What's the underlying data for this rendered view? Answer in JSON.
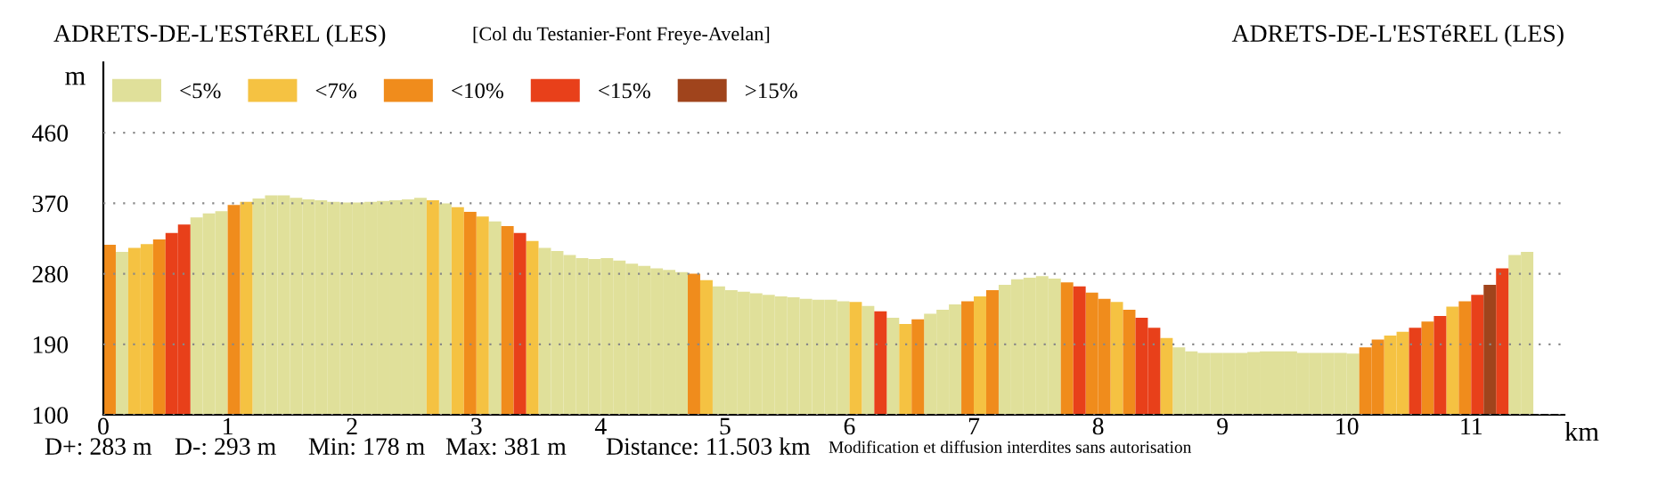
{
  "chart_data": {
    "type": "bar",
    "title": "[Col du Testanier-Font Freye-Avelan]",
    "xlabel": "km",
    "ylabel": "m",
    "annotations": [
      "ADRETS-DE-L'ESTéREL (LES)",
      "ADRETS-DE-L'ESTéREL (LES)",
      "D+: 283 m",
      "D-: 293 m",
      "Min: 178 m",
      "Max: 381 m",
      "Distance: 11.503 km",
      "Modification et diffusion interdites sans autorisation"
    ],
    "xlim": [
      0,
      11.75
    ],
    "xticks": [
      0,
      1,
      2,
      3,
      4,
      5,
      6,
      7,
      8,
      9,
      10,
      11
    ],
    "ylim": [
      100,
      550
    ],
    "yticks": [
      100,
      190,
      280,
      370,
      460
    ],
    "grid": "y",
    "legend": "top left",
    "series": [
      {
        "name": "<5%",
        "color": "#e0e09a",
        "x": [
          0.1,
          0.7,
          0.8,
          0.9,
          1.2,
          1.3,
          1.4,
          1.5,
          1.6,
          1.7,
          1.8,
          1.9,
          2.0,
          2.1,
          2.2,
          2.3,
          2.4,
          2.5,
          2.7,
          3.1,
          3.5,
          3.6,
          3.7,
          3.8,
          3.9,
          4.0,
          4.1,
          4.2,
          4.3,
          4.4,
          4.5,
          4.6,
          4.9,
          5.0,
          5.1,
          5.2,
          5.3,
          5.4,
          5.5,
          5.6,
          5.7,
          5.8,
          5.9,
          6.1,
          6.3,
          6.6,
          6.7,
          6.8,
          7.2,
          7.3,
          7.4,
          7.5,
          7.6,
          8.6,
          8.7,
          8.8,
          8.9,
          9.0,
          9.1,
          9.2,
          9.3,
          9.4,
          9.5,
          9.6,
          9.7,
          9.8,
          9.9,
          10.0,
          11.3,
          11.4
        ],
        "values": [
          308,
          352,
          357,
          360,
          376,
          380,
          380,
          377,
          375,
          374,
          372,
          371,
          371,
          372,
          373,
          374,
          375,
          377,
          370,
          347,
          313,
          309,
          304,
          300,
          299,
          300,
          297,
          293,
          290,
          287,
          285,
          282,
          264,
          259,
          257,
          255,
          253,
          251,
          250,
          248,
          247,
          247,
          245,
          239,
          224,
          229,
          234,
          241,
          266,
          273,
          275,
          277,
          274,
          186,
          181,
          179,
          179,
          179,
          179,
          180,
          181,
          181,
          181,
          179,
          179,
          179,
          179,
          178,
          304,
          308
        ]
      },
      {
        "name": "<7%",
        "color": "#f5c242",
        "x": [
          0.2,
          0.3,
          1.1,
          2.6,
          2.8,
          3.0,
          3.4,
          4.8,
          6.0,
          6.4,
          7.0,
          8.1,
          8.5,
          10.3,
          10.4,
          10.8
        ],
        "values": [
          313,
          318,
          372,
          374,
          365,
          353,
          322,
          272,
          244,
          216,
          251,
          244,
          198,
          201,
          206,
          238
        ]
      },
      {
        "name": "<10%",
        "color": "#f08c1c",
        "x": [
          0.0,
          0.4,
          1.0,
          2.9,
          3.2,
          4.7,
          6.5,
          6.9,
          7.1,
          7.7,
          7.9,
          8.0,
          8.2,
          10.1,
          10.2,
          10.6,
          10.9
        ],
        "values": [
          317,
          324,
          368,
          359,
          341,
          280,
          222,
          245,
          259,
          269,
          256,
          248,
          234,
          186,
          196,
          219,
          245
        ]
      },
      {
        "name": "<15%",
        "color": "#e8401a",
        "x": [
          0.5,
          0.6,
          3.3,
          6.2,
          7.8,
          8.3,
          8.4,
          10.5,
          10.7,
          11.0,
          11.2
        ],
        "values": [
          332,
          343,
          332,
          232,
          264,
          224,
          211,
          211,
          226,
          253,
          287
        ]
      },
      {
        "name": ">15%",
        "color": "#a0441c",
        "x": [
          11.1
        ],
        "values": [
          266
        ]
      }
    ]
  }
}
